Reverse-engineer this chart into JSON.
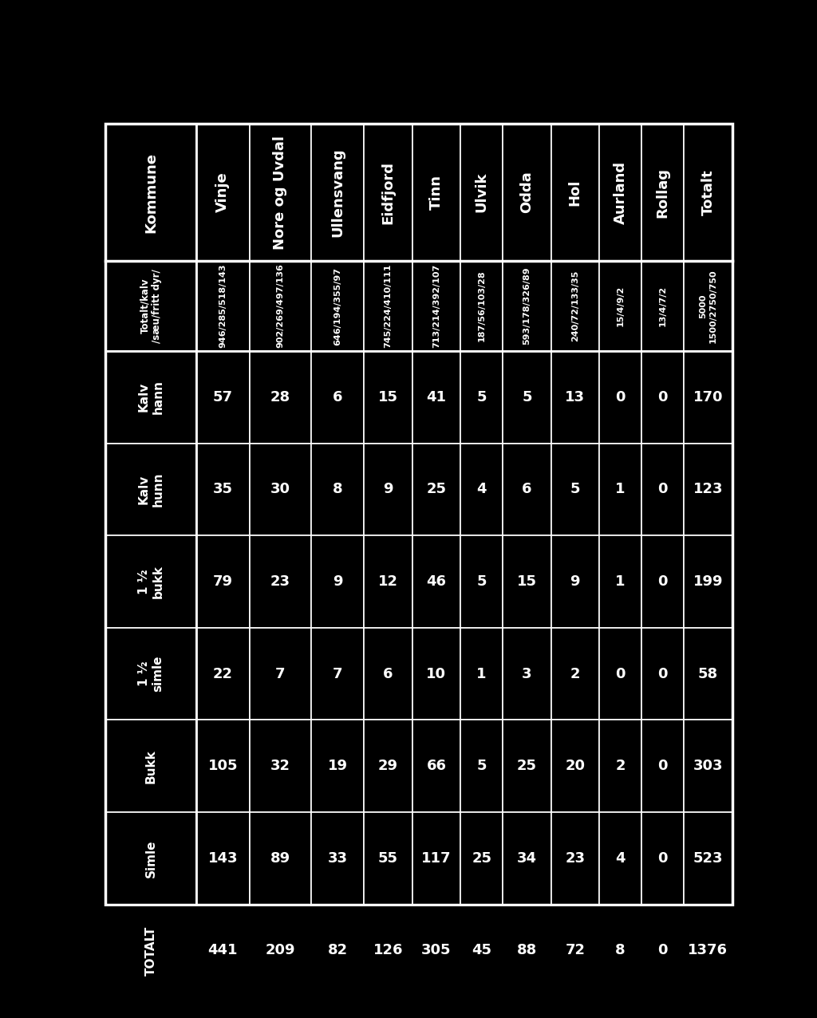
{
  "bg_color": "#000000",
  "text_color": "#ffffff",
  "row_headers": [
    "Totalt/kalv\n/sæu/fritt dyr/",
    "Kalv\nhann",
    "Kalv\nhunn",
    "1 ½\nbukk",
    "1 ½\nsimle",
    "Bukk",
    "Simle",
    "TOTALT"
  ],
  "col_headers": [
    "Kommune",
    "Vinje",
    "Nore og Uvdal",
    "Ullensvang",
    "Eidfjord",
    "Tinn",
    "Ulvik",
    "Odda",
    "Hol",
    "Aurland",
    "Rollag",
    "Totalt"
  ],
  "totalt_kalv": [
    "",
    "946/285/518/143",
    "902/269/497/136",
    "646/194/355/97",
    "745/224/410/111",
    "713/214/392/107",
    "187/56/103/28",
    "593/178/326/89",
    "240/72/133/35",
    "15/4/9/2",
    "13/4/7/2",
    "5000\n1500/2750/750"
  ],
  "kalv_hann": [
    "",
    57,
    28,
    6,
    15,
    41,
    5,
    5,
    13,
    0,
    0,
    170
  ],
  "kalv_hunn": [
    "",
    35,
    30,
    8,
    9,
    25,
    4,
    6,
    5,
    1,
    0,
    123
  ],
  "halv_bukk": [
    "",
    79,
    23,
    9,
    12,
    46,
    5,
    15,
    9,
    1,
    0,
    199
  ],
  "halv_simle": [
    "",
    22,
    7,
    7,
    6,
    10,
    1,
    3,
    2,
    0,
    0,
    58
  ],
  "bukk": [
    "",
    105,
    32,
    19,
    29,
    66,
    5,
    25,
    20,
    2,
    0,
    303
  ],
  "simle": [
    "",
    143,
    89,
    33,
    55,
    117,
    25,
    34,
    23,
    4,
    0,
    523
  ],
  "totalt": [
    "",
    441,
    209,
    82,
    126,
    305,
    45,
    88,
    72,
    8,
    0,
    1376
  ],
  "col_header_fontsize": 13,
  "row_header_fontsize": 11,
  "data_fontsize": 13,
  "totalt_kalv_fontsize": 8
}
